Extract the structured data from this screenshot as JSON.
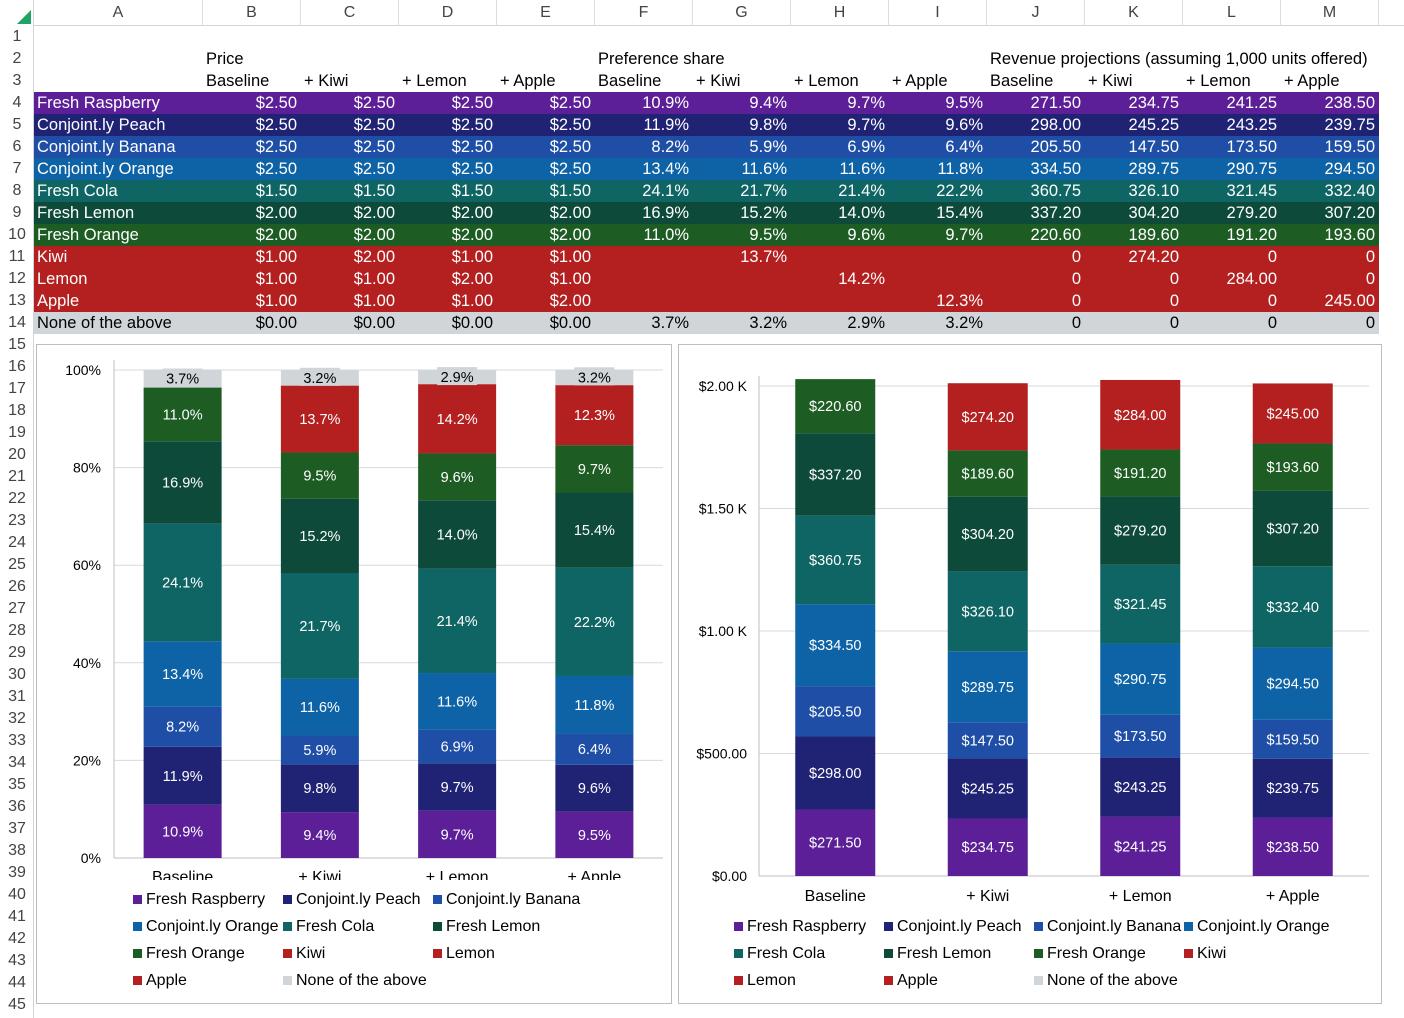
{
  "columns": [
    "A",
    "B",
    "C",
    "D",
    "E",
    "F",
    "G",
    "H",
    "I",
    "J",
    "K",
    "L",
    "M"
  ],
  "rows": [
    "1",
    "2",
    "3",
    "4",
    "5",
    "6",
    "7",
    "8",
    "9",
    "10",
    "11",
    "12",
    "13",
    "14",
    "15",
    "16",
    "17",
    "18",
    "19",
    "20",
    "21",
    "22",
    "23",
    "24",
    "25",
    "26",
    "27",
    "28",
    "29",
    "30",
    "31",
    "32",
    "33",
    "34",
    "35",
    "36",
    "37",
    "38",
    "39",
    "40",
    "41",
    "42",
    "43",
    "44",
    "45"
  ],
  "headers": {
    "price": "Price",
    "pref": "Preference share",
    "rev": "Revenue projections (assuming 1,000 units offered)",
    "sub": [
      "Baseline",
      "+ Kiwi",
      "+ Lemon",
      "+ Apple",
      "Baseline",
      "+ Kiwi",
      "+ Lemon",
      "+ Apple",
      "Baseline",
      "+ Kiwi",
      "+ Lemon",
      "+ Apple"
    ]
  },
  "colors": {
    "Fresh Raspberry": "#5c1f98",
    "Conjoint.ly Peach": "#202374",
    "Conjoint.ly Banana": "#1e4ea5",
    "Conjoint.ly Orange": "#0d63a6",
    "Fresh Cola": "#0e6564",
    "Fresh Lemon": "#0d4a3a",
    "Fresh Orange": "#1d5d23",
    "Kiwi": "#b42020",
    "Lemon": "#b42020",
    "Apple": "#b42020",
    "None of the above": "#d0d5d9"
  },
  "table": [
    {
      "name": "Fresh Raspberry",
      "cells": [
        "$2.50",
        "$2.50",
        "$2.50",
        "$2.50",
        "10.9%",
        "9.4%",
        "9.7%",
        "9.5%",
        "271.50",
        "234.75",
        "241.25",
        "238.50"
      ]
    },
    {
      "name": "Conjoint.ly Peach",
      "cells": [
        "$2.50",
        "$2.50",
        "$2.50",
        "$2.50",
        "11.9%",
        "9.8%",
        "9.7%",
        "9.6%",
        "298.00",
        "245.25",
        "243.25",
        "239.75"
      ]
    },
    {
      "name": "Conjoint.ly Banana",
      "cells": [
        "$2.50",
        "$2.50",
        "$2.50",
        "$2.50",
        "8.2%",
        "5.9%",
        "6.9%",
        "6.4%",
        "205.50",
        "147.50",
        "173.50",
        "159.50"
      ]
    },
    {
      "name": "Conjoint.ly Orange",
      "cells": [
        "$2.50",
        "$2.50",
        "$2.50",
        "$2.50",
        "13.4%",
        "11.6%",
        "11.6%",
        "11.8%",
        "334.50",
        "289.75",
        "290.75",
        "294.50"
      ]
    },
    {
      "name": "Fresh Cola",
      "cells": [
        "$1.50",
        "$1.50",
        "$1.50",
        "$1.50",
        "24.1%",
        "21.7%",
        "21.4%",
        "22.2%",
        "360.75",
        "326.10",
        "321.45",
        "332.40"
      ]
    },
    {
      "name": "Fresh Lemon",
      "cells": [
        "$2.00",
        "$2.00",
        "$2.00",
        "$2.00",
        "16.9%",
        "15.2%",
        "14.0%",
        "15.4%",
        "337.20",
        "304.20",
        "279.20",
        "307.20"
      ]
    },
    {
      "name": "Fresh Orange",
      "cells": [
        "$2.00",
        "$2.00",
        "$2.00",
        "$2.00",
        "11.0%",
        "9.5%",
        "9.6%",
        "9.7%",
        "220.60",
        "189.60",
        "191.20",
        "193.60"
      ]
    },
    {
      "name": "Kiwi",
      "cells": [
        "$1.00",
        "$2.00",
        "$1.00",
        "$1.00",
        "",
        "13.7%",
        "",
        "",
        "0",
        "274.20",
        "0",
        "0"
      ]
    },
    {
      "name": "Lemon",
      "cells": [
        "$1.00",
        "$1.00",
        "$2.00",
        "$1.00",
        "",
        "",
        "14.2%",
        "",
        "0",
        "0",
        "284.00",
        "0"
      ]
    },
    {
      "name": "Apple",
      "cells": [
        "$1.00",
        "$1.00",
        "$1.00",
        "$2.00",
        "",
        "",
        "",
        "12.3%",
        "0",
        "0",
        "0",
        "245.00"
      ]
    },
    {
      "name": "None of the above",
      "cells": [
        "$0.00",
        "$0.00",
        "$0.00",
        "$0.00",
        "3.7%",
        "3.2%",
        "2.9%",
        "3.2%",
        "0",
        "0",
        "0",
        "0"
      ]
    }
  ],
  "chart_data": [
    {
      "type": "bar",
      "stacked": true,
      "title": "",
      "categories": [
        "Baseline",
        "+ Kiwi",
        "+ Lemon",
        "+ Apple"
      ],
      "ylim": [
        0,
        100
      ],
      "yticks": [
        "0%",
        "20%",
        "40%",
        "60%",
        "80%",
        "100%"
      ],
      "legend": "bottom",
      "series": [
        {
          "name": "Fresh Raspberry",
          "values": [
            10.9,
            9.4,
            9.7,
            9.5
          ],
          "labels": [
            "10.9%",
            "9.4%",
            "9.7%",
            "9.5%"
          ]
        },
        {
          "name": "Conjoint.ly Peach",
          "values": [
            11.9,
            9.8,
            9.7,
            9.6
          ],
          "labels": [
            "11.9%",
            "9.8%",
            "9.7%",
            "9.6%"
          ]
        },
        {
          "name": "Conjoint.ly Banana",
          "values": [
            8.2,
            5.9,
            6.9,
            6.4
          ],
          "labels": [
            "8.2%",
            "5.9%",
            "6.9%",
            "6.4%"
          ]
        },
        {
          "name": "Conjoint.ly Orange",
          "values": [
            13.4,
            11.6,
            11.6,
            11.8
          ],
          "labels": [
            "13.4%",
            "11.6%",
            "11.6%",
            "11.8%"
          ]
        },
        {
          "name": "Fresh Cola",
          "values": [
            24.1,
            21.7,
            21.4,
            22.2
          ],
          "labels": [
            "24.1%",
            "21.7%",
            "21.4%",
            "22.2%"
          ]
        },
        {
          "name": "Fresh Lemon",
          "values": [
            16.9,
            15.2,
            14.0,
            15.4
          ],
          "labels": [
            "16.9%",
            "15.2%",
            "14.0%",
            "15.4%"
          ]
        },
        {
          "name": "Fresh Orange",
          "values": [
            11.0,
            9.5,
            9.6,
            9.7
          ],
          "labels": [
            "11.0%",
            "9.5%",
            "9.6%",
            "9.7%"
          ]
        },
        {
          "name": "Kiwi",
          "values": [
            0,
            13.7,
            0,
            0
          ],
          "labels": [
            "",
            "13.7%",
            "",
            ""
          ]
        },
        {
          "name": "Lemon",
          "values": [
            0,
            0,
            14.2,
            0
          ],
          "labels": [
            "",
            "",
            "14.2%",
            ""
          ]
        },
        {
          "name": "Apple",
          "values": [
            0,
            0,
            0,
            12.3
          ],
          "labels": [
            "",
            "",
            "",
            "12.3%"
          ]
        },
        {
          "name": "None of the above",
          "values": [
            3.7,
            3.2,
            2.9,
            3.2
          ],
          "labels": [
            "3.7%",
            "3.2%",
            "2.9%",
            "3.2%"
          ]
        }
      ]
    },
    {
      "type": "bar",
      "stacked": true,
      "title": "",
      "categories": [
        "Baseline",
        "+ Kiwi",
        "+ Lemon",
        "+ Apple"
      ],
      "ylim": [
        0,
        2000
      ],
      "yticks": [
        "$0.00",
        "$500.00",
        "$1.00 K",
        "$1.50 K",
        "$2.00 K"
      ],
      "legend": "bottom",
      "series": [
        {
          "name": "Fresh Raspberry",
          "values": [
            271.5,
            234.75,
            241.25,
            238.5
          ],
          "labels": [
            "$271.50",
            "$234.75",
            "$241.25",
            "$238.50"
          ]
        },
        {
          "name": "Conjoint.ly Peach",
          "values": [
            298.0,
            245.25,
            243.25,
            239.75
          ],
          "labels": [
            "$298.00",
            "$245.25",
            "$243.25",
            "$239.75"
          ]
        },
        {
          "name": "Conjoint.ly Banana",
          "values": [
            205.5,
            147.5,
            173.5,
            159.5
          ],
          "labels": [
            "$205.50",
            "$147.50",
            "$173.50",
            "$159.50"
          ]
        },
        {
          "name": "Conjoint.ly Orange",
          "values": [
            334.5,
            289.75,
            290.75,
            294.5
          ],
          "labels": [
            "$334.50",
            "$289.75",
            "$290.75",
            "$294.50"
          ]
        },
        {
          "name": "Fresh Cola",
          "values": [
            360.75,
            326.1,
            321.45,
            332.4
          ],
          "labels": [
            "$360.75",
            "$326.10",
            "$321.45",
            "$332.40"
          ]
        },
        {
          "name": "Fresh Lemon",
          "values": [
            337.2,
            304.2,
            279.2,
            307.2
          ],
          "labels": [
            "$337.20",
            "$304.20",
            "$279.20",
            "$307.20"
          ]
        },
        {
          "name": "Fresh Orange",
          "values": [
            220.6,
            189.6,
            191.2,
            193.6
          ],
          "labels": [
            "$220.60",
            "$189.60",
            "$191.20",
            "$193.60"
          ]
        },
        {
          "name": "Kiwi",
          "values": [
            0,
            274.2,
            0,
            0
          ],
          "labels": [
            "",
            "$274.20",
            "",
            ""
          ]
        },
        {
          "name": "Lemon",
          "values": [
            0,
            0,
            284.0,
            0
          ],
          "labels": [
            "",
            "",
            "$284.00",
            ""
          ]
        },
        {
          "name": "Apple",
          "values": [
            0,
            0,
            0,
            245.0
          ],
          "labels": [
            "",
            "",
            "",
            "$245.00"
          ]
        },
        {
          "name": "None of the above",
          "values": [
            0,
            0,
            0,
            0
          ],
          "labels": [
            "",
            "",
            "",
            ""
          ]
        }
      ]
    }
  ]
}
